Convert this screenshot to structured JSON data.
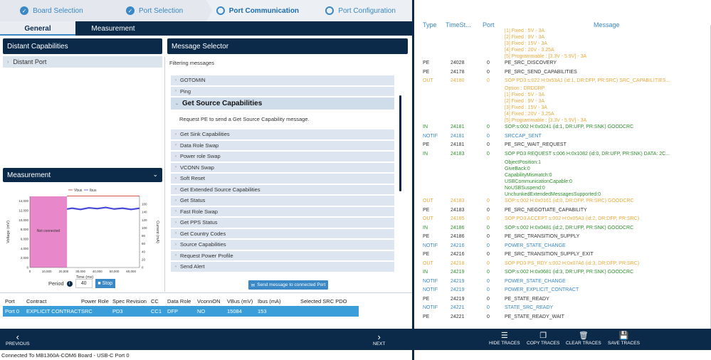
{
  "steps": [
    {
      "label": "Board Selection",
      "state": "done"
    },
    {
      "label": "Port Selection",
      "state": "done"
    },
    {
      "label": "Port Communication",
      "state": "active"
    },
    {
      "label": "Port Configuration",
      "state": "todo"
    }
  ],
  "tabs": [
    {
      "label": "General"
    },
    {
      "label": "Measurement"
    }
  ],
  "distant": {
    "title": "Distant Capabilities",
    "item": "Distant Port"
  },
  "selector": {
    "title": "Message Selector",
    "filter_label": "Filtering messages",
    "items_before": [
      "GOTOMIN",
      "Ping"
    ],
    "open_item": "Get Source Capabilities",
    "open_desc": "Request PE to send a Get Source Capability message.",
    "items_after": [
      "Get Sink Capabilities",
      "Data Role Swap",
      "Power role Swap",
      "VCONN Swap",
      "Soft Reset",
      "Get Extended Source Capabilities",
      "Get Status",
      "Fast Role Swap",
      "Get PPS Status",
      "Get Country Codes",
      "Source Capabilities",
      "Request Power Profile",
      "Send Alert"
    ],
    "send_label": "Send message to connected Port"
  },
  "measurement": {
    "title": "Measurement",
    "period_label": "Period",
    "period_value": "40",
    "stop_label": "Stop"
  },
  "chart_data": {
    "type": "line",
    "legend": [
      "Vbus",
      "Ibus"
    ],
    "xlabel": "Time (ms)",
    "ylabel": "Voltage (mV)",
    "y2label": "Current (mA)",
    "xlim": [
      0,
      65000
    ],
    "ylim": [
      0,
      15000
    ],
    "y2lim": [
      0,
      180
    ],
    "x_ticks": [
      "0",
      "10,000",
      "20,000",
      "30,000",
      "40,000",
      "50,000",
      "60,000"
    ],
    "y_ticks": [
      "0",
      "2,000",
      "4,000",
      "6,000",
      "8,000",
      "10,000",
      "12,000",
      "14,000"
    ],
    "y2_ticks": [
      "0",
      "20",
      "40",
      "60",
      "80",
      "100",
      "120",
      "140",
      "160"
    ],
    "region_label": "Not connected",
    "region_x": [
      0,
      22000
    ],
    "vbus": {
      "x": [
        22000,
        65000
      ],
      "y": [
        15084,
        15084
      ]
    },
    "ibus": {
      "x": [
        22000,
        25000,
        30000,
        35000,
        40000,
        45000,
        50000,
        55000,
        60000,
        65000
      ],
      "y": [
        148,
        150,
        147,
        151,
        149,
        152,
        148,
        150,
        147,
        150
      ]
    }
  },
  "port_table": {
    "headers": [
      "Port",
      "Contract",
      "Power Role",
      "Spec Revision",
      "CC",
      "Data Role",
      "VconnON",
      "VBus (mV)",
      "Ibus (mA)",
      "Selected SRC PDO"
    ],
    "row": [
      "Port 0",
      "EXPLICIT CONTRACT",
      "SRC",
      "PD3",
      "CC1",
      "DFP",
      "NO",
      "15084",
      "153",
      ""
    ]
  },
  "nav": {
    "prev": "PREVIOUS",
    "next": "NEXT"
  },
  "status": "Connected To MB1360A-COM6 Board - USB-C Port 0",
  "trace_headers": [
    "Type",
    "TimeSt...",
    "Port",
    "Message"
  ],
  "traces": [
    {
      "kind": "cont",
      "msg": "[1] Fixed : 5V - 3A"
    },
    {
      "kind": "cont",
      "msg": "[2] Fixed : 9V - 3A"
    },
    {
      "kind": "cont",
      "msg": "[3] Fixed : 15V - 3A"
    },
    {
      "kind": "cont",
      "msg": "[4] Fixed : 20V - 3.25A"
    },
    {
      "kind": "cont",
      "msg": "[5] Programmable : [3.3V - 5.9V] - 3A"
    },
    {
      "kind": "pe",
      "type": "PE",
      "ts": "24028",
      "port": "0",
      "msg": "PE_SRC_DISCOVERY"
    },
    {
      "kind": "pe",
      "type": "PE",
      "ts": "24178",
      "port": "0",
      "msg": "PE_SRC_SEND_CAPABILITIES"
    },
    {
      "kind": "out",
      "type": "OUT",
      "ts": "24180",
      "port": "0",
      "msg": "SOP PD3     s:022          H:0x53A1           (id:1, DR:DFP, PR:SRC)       SRC_CAPABILITIES..."
    },
    {
      "kind": "cont",
      "msg": "Option : DRDDRP"
    },
    {
      "kind": "cont",
      "msg": "[1] Fixed : 5V - 3A"
    },
    {
      "kind": "cont",
      "msg": "[2] Fixed : 9V - 3A"
    },
    {
      "kind": "cont",
      "msg": "[3] Fixed : 15V - 3A"
    },
    {
      "kind": "cont",
      "msg": "[4] Fixed : 20V - 3.25A"
    },
    {
      "kind": "cont",
      "msg": "[5] Programmable : [3.3V - 5.9V] - 3A"
    },
    {
      "kind": "in",
      "type": "IN",
      "ts": "24181",
      "port": "0",
      "msg": "SOP:s:002          H:0x0241    (id:1, DR:UFP, PR:SNK)      GOODCRC"
    },
    {
      "kind": "notif",
      "type": "NOTIF",
      "ts": "24181",
      "port": "0",
      "msg": "SRCCAP_SENT"
    },
    {
      "kind": "pe",
      "type": "PE",
      "ts": "24181",
      "port": "0",
      "msg": "PE_SRC_WAIT_REQUEST"
    },
    {
      "kind": "in",
      "type": "IN",
      "ts": "24183",
      "port": "0",
      "msg": "SOP PD3       REQUEST   s:006          H:0x1082           (id:0, DR:UFP, PR:SNK)   DATA: 2C..."
    },
    {
      "kind": "incont",
      "msg": "ObjectPosition:1"
    },
    {
      "kind": "incont",
      "msg": "GiveBack:0"
    },
    {
      "kind": "incont",
      "msg": "CapabilityMismatch:0"
    },
    {
      "kind": "incont",
      "msg": "USBCommunicationCapable:0"
    },
    {
      "kind": "incont",
      "msg": "NoUSBSuspend:0"
    },
    {
      "kind": "incont",
      "msg": "UnchunkedExtendedMessagesSupported:0"
    },
    {
      "kind": "out",
      "type": "OUT",
      "ts": "24183",
      "port": "0",
      "msg": "SOP:s:002          H:0x0161    (id:0, DR:DFP, PR:SRC)      GOODCRC"
    },
    {
      "kind": "pe",
      "type": "PE",
      "ts": "24183",
      "port": "0",
      "msg": "PE_SRC_NEGOTIATE_CAPABILITY"
    },
    {
      "kind": "out",
      "type": "OUT",
      "ts": "24185",
      "port": "0",
      "msg": "SOP PD3       ACCEPT  s:002          H:0x05A3     (id:2, DR:DFP, PR:SRC)"
    },
    {
      "kind": "in",
      "type": "IN",
      "ts": "24186",
      "port": "0",
      "msg": "SOP:s:002          H:0x0481    (id:2, DR:UFP, PR:SNK)      GOODCRC"
    },
    {
      "kind": "pe",
      "type": "PE",
      "ts": "24186",
      "port": "0",
      "msg": "PE_SRC_TRANSITION_SUPPLY"
    },
    {
      "kind": "notif",
      "type": "NOTIF",
      "ts": "24216",
      "port": "0",
      "msg": "POWER_STATE_CHANGE"
    },
    {
      "kind": "pe",
      "type": "PE",
      "ts": "24216",
      "port": "0",
      "msg": "PE_SRC_TRANSITION_SUPPLY_EXIT"
    },
    {
      "kind": "out",
      "type": "OUT",
      "ts": "24218",
      "port": "0",
      "msg": "SOP PD3       PS_RDY  s:002          H:0x07A6     (id:3, DR:DFP, PR:SRC)"
    },
    {
      "kind": "in",
      "type": "IN",
      "ts": "24219",
      "port": "0",
      "msg": "SOP:s:002          H:0x0681    (id:3, DR:UFP, PR:SNK)      GOODCRC"
    },
    {
      "kind": "notif",
      "type": "NOTIF",
      "ts": "24219",
      "port": "0",
      "msg": "POWER_STATE_CHANGE"
    },
    {
      "kind": "notif",
      "type": "NOTIF",
      "ts": "24219",
      "port": "0",
      "msg": "POWER_EXPLICIT_CONTRACT"
    },
    {
      "kind": "pe",
      "type": "PE",
      "ts": "24219",
      "port": "0",
      "msg": "PE_STATE_READY"
    },
    {
      "kind": "notif",
      "type": "NOTIF",
      "ts": "24221",
      "port": "0",
      "msg": "STATE_SRC_READY"
    },
    {
      "kind": "pe",
      "type": "PE",
      "ts": "24221",
      "port": "0",
      "msg": "PE_STATE_READY_WAIT"
    }
  ],
  "trace_buttons": [
    {
      "label": "HIDE TRACES",
      "icon": "list-icon"
    },
    {
      "label": "COPY TRACES",
      "icon": "copy-icon"
    },
    {
      "label": "CLEAR TRACES",
      "icon": "trash-icon"
    },
    {
      "label": "SAVE TRACES",
      "icon": "save-icon"
    }
  ],
  "colors": {
    "navy": "#0b2a4a",
    "accent": "#3a88c5",
    "out": "#e8a93b",
    "in": "#2f8f2f",
    "notif": "#3a88c5",
    "region": "#e887c9",
    "ibus_line": "#4a4ad8",
    "vbus_line": "#c93c3c"
  }
}
